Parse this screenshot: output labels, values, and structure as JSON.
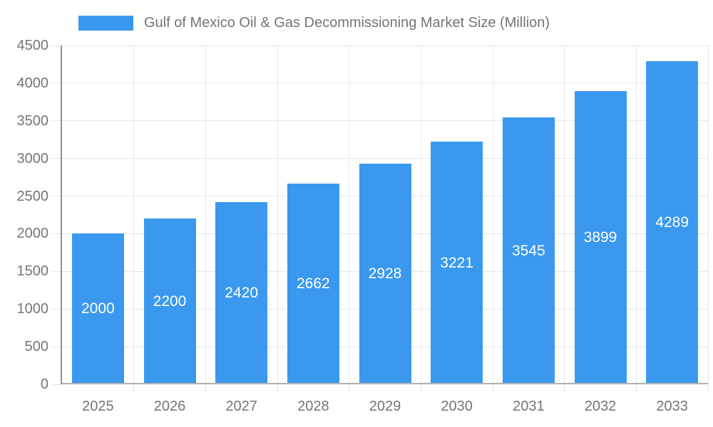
{
  "chart_data": {
    "type": "bar",
    "title": "Gulf of Mexico Oil & Gas Decommissioning Market Size (Million)",
    "categories": [
      "2025",
      "2026",
      "2027",
      "2028",
      "2029",
      "2030",
      "2031",
      "2032",
      "2033"
    ],
    "values": [
      2000,
      2200,
      2420,
      2662,
      2928,
      3221,
      3545,
      3899,
      4289
    ],
    "xlabel": "",
    "ylabel": "",
    "ylim": [
      0,
      4500
    ],
    "yticks": [
      0,
      500,
      1000,
      1500,
      2000,
      2500,
      3000,
      3500,
      4000,
      4500
    ],
    "grid": "on",
    "legend_position": "top-center",
    "bar_label_position": "inside-center",
    "colors": {
      "bar": "#3a99ee",
      "bar_label": "#ffffff",
      "axis_text": "#757575",
      "gridline": "#e6e6e6",
      "y_axis_line": "#8f8f8f",
      "x_axis_line": "#b2b2b2",
      "background": "#ffffff"
    }
  }
}
